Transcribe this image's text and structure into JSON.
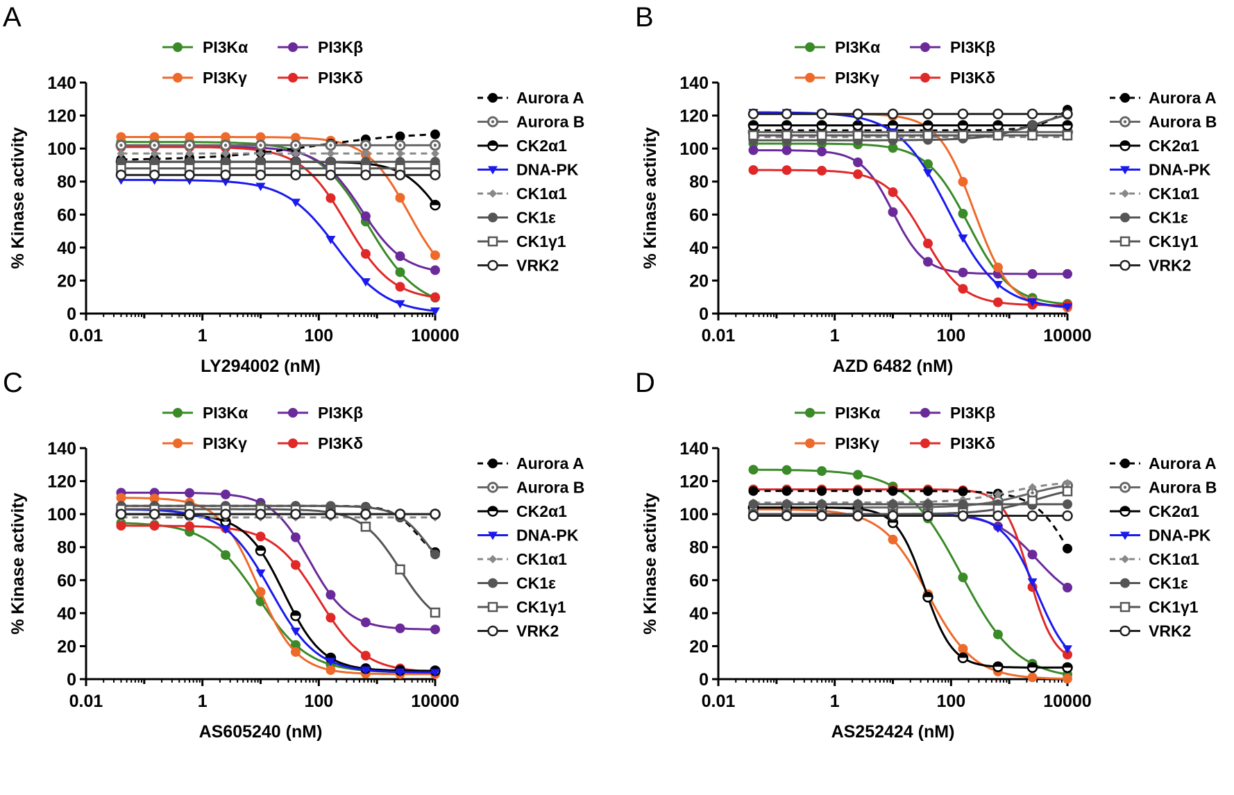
{
  "figure": {
    "x_ticks": [
      "0.01",
      "1",
      "100",
      "10000"
    ],
    "y_ticks": [
      0,
      20,
      40,
      60,
      80,
      100,
      120,
      140
    ],
    "ylabel": "% Kinase activity",
    "top_legend": [
      {
        "name": "PI3Kα",
        "color": "#3a8a28",
        "marker": "circle"
      },
      {
        "name": "PI3Kβ",
        "color": "#6a2a9a",
        "marker": "circle"
      },
      {
        "name": "PI3Kγ",
        "color": "#ee6a2a",
        "marker": "circle"
      },
      {
        "name": "PI3Kδ",
        "color": "#e02828",
        "marker": "circle"
      }
    ],
    "side_legend": [
      {
        "name": "Aurora A",
        "color": "#000000",
        "marker": "circle",
        "dash": "dashed"
      },
      {
        "name": "Aurora B",
        "color": "#666666",
        "marker": "open-dot",
        "dash": "solid"
      },
      {
        "name": "CK2α1",
        "color": "#000000",
        "marker": "half-circle",
        "dash": "solid"
      },
      {
        "name": "DNA-PK",
        "color": "#1a1aee",
        "marker": "triangle-down",
        "dash": "solid"
      },
      {
        "name": "CK1α1",
        "color": "#888888",
        "marker": "diamond",
        "dash": "dashed"
      },
      {
        "name": "CK1ε",
        "color": "#555555",
        "marker": "circle",
        "dash": "solid"
      },
      {
        "name": "CK1γ1",
        "color": "#555555",
        "marker": "open-square",
        "dash": "solid"
      },
      {
        "name": "VRK2",
        "color": "#222222",
        "marker": "open-circle",
        "dash": "solid"
      }
    ]
  },
  "chart_data": [
    {
      "type": "line",
      "panel": "A",
      "xlabel": "LY294002 (nM)",
      "ylabel": "% Kinase activity",
      "xscale": "log",
      "xlim": [
        0.01,
        10000
      ],
      "ylim": [
        0,
        140
      ],
      "series": [
        {
          "name": "PI3Kα",
          "fit": {
            "top": 104,
            "bottom": 3,
            "ic50": 700,
            "hill": 1.0
          }
        },
        {
          "name": "PI3Kβ",
          "fit": {
            "top": 101,
            "bottom": 24,
            "ic50": 550,
            "hill": 1.2
          }
        },
        {
          "name": "PI3Kγ",
          "fit": {
            "top": 107,
            "bottom": 15,
            "ic50": 3500,
            "hill": 1.2
          }
        },
        {
          "name": "PI3Kδ",
          "fit": {
            "top": 101,
            "bottom": 8,
            "ic50": 300,
            "hill": 1.1
          }
        },
        {
          "name": "Aurora A",
          "fit": {
            "top": 93,
            "bottom": 110,
            "ic50": 80,
            "hill": 0.5
          }
        },
        {
          "name": "Aurora B",
          "fit": {
            "top": 102,
            "bottom": 102,
            "ic50": 100,
            "hill": 1
          }
        },
        {
          "name": "CK2α1",
          "fit": {
            "top": 92,
            "bottom": 25,
            "ic50": 14000,
            "hill": 1.3
          }
        },
        {
          "name": "DNA-PK",
          "fit": {
            "top": 81,
            "bottom": 0,
            "ic50": 200,
            "hill": 1.0
          }
        },
        {
          "name": "CK1α1",
          "fit": {
            "top": 97,
            "bottom": 97,
            "ic50": 100,
            "hill": 1
          }
        },
        {
          "name": "CK1ε",
          "fit": {
            "top": 92,
            "bottom": 92,
            "ic50": 100,
            "hill": 1
          }
        },
        {
          "name": "CK1γ1",
          "fit": {
            "top": 88,
            "bottom": 88,
            "ic50": 100,
            "hill": 1
          }
        },
        {
          "name": "VRK2",
          "fit": {
            "top": 84,
            "bottom": 84,
            "ic50": 100,
            "hill": 1
          }
        }
      ]
    },
    {
      "type": "line",
      "panel": "B",
      "xlabel": "AZD 6482 (nM)",
      "ylabel": "% Kinase activity",
      "xscale": "log",
      "xlim": [
        0.01,
        10000
      ],
      "ylim": [
        0,
        140
      ],
      "series": [
        {
          "name": "PI3Kα",
          "fit": {
            "top": 103,
            "bottom": 5,
            "ic50": 200,
            "hill": 1.2
          }
        },
        {
          "name": "PI3Kβ",
          "fit": {
            "top": 99,
            "bottom": 24,
            "ic50": 10,
            "hill": 1.6
          }
        },
        {
          "name": "PI3Kγ",
          "fit": {
            "top": 121,
            "bottom": 3,
            "ic50": 250,
            "hill": 1.4
          }
        },
        {
          "name": "PI3Kδ",
          "fit": {
            "top": 87,
            "bottom": 5,
            "ic50": 35,
            "hill": 1.3
          }
        },
        {
          "name": "Aurora A",
          "fit": {
            "top": 111,
            "bottom": 140,
            "ic50": 12000,
            "hill": 1.5
          }
        },
        {
          "name": "Aurora B",
          "fit": {
            "top": 110,
            "bottom": 110,
            "ic50": 100,
            "hill": 1
          }
        },
        {
          "name": "CK2α1",
          "fit": {
            "top": 114,
            "bottom": 114,
            "ic50": 100,
            "hill": 1
          }
        },
        {
          "name": "DNA-PK",
          "fit": {
            "top": 122,
            "bottom": 3,
            "ic50": 90,
            "hill": 1.0
          }
        },
        {
          "name": "CK1α1",
          "fit": {
            "top": 107,
            "bottom": 107,
            "ic50": 100,
            "hill": 1
          }
        },
        {
          "name": "CK1ε",
          "fit": {
            "top": 105,
            "bottom": 125,
            "ic50": 3000,
            "hill": 1
          }
        },
        {
          "name": "CK1γ1",
          "fit": {
            "top": 108,
            "bottom": 108,
            "ic50": 100,
            "hill": 1
          }
        },
        {
          "name": "VRK2",
          "fit": {
            "top": 121,
            "bottom": 121,
            "ic50": 100,
            "hill": 1
          }
        }
      ]
    },
    {
      "type": "line",
      "panel": "C",
      "xlabel": "AS605240 (nM)",
      "ylabel": "% Kinase activity",
      "xscale": "log",
      "xlim": [
        0.01,
        10000
      ],
      "ylim": [
        0,
        140
      ],
      "series": [
        {
          "name": "PI3Kα",
          "fit": {
            "top": 95,
            "bottom": 4,
            "ic50": 9,
            "hill": 1.0
          }
        },
        {
          "name": "PI3Kβ",
          "fit": {
            "top": 113,
            "bottom": 30,
            "ic50": 70,
            "hill": 1.3
          }
        },
        {
          "name": "PI3Kγ",
          "fit": {
            "top": 110,
            "bottom": 3,
            "ic50": 9,
            "hill": 1.3
          }
        },
        {
          "name": "PI3Kδ",
          "fit": {
            "top": 93,
            "bottom": 4,
            "ic50": 100,
            "hill": 1.1
          }
        },
        {
          "name": "Aurora A",
          "fit": {
            "top": 105,
            "bottom": 70,
            "ic50": 5000,
            "hill": 2
          }
        },
        {
          "name": "Aurora B",
          "fit": {
            "top": 100,
            "bottom": 100,
            "ic50": 100,
            "hill": 1
          }
        },
        {
          "name": "CK2α1",
          "fit": {
            "top": 100,
            "bottom": 5,
            "ic50": 25,
            "hill": 1.3
          }
        },
        {
          "name": "DNA-PK",
          "fit": {
            "top": 103,
            "bottom": 4,
            "ic50": 15,
            "hill": 1.1
          }
        },
        {
          "name": "CK1α1",
          "fit": {
            "top": 98,
            "bottom": 98,
            "ic50": 100,
            "hill": 1
          }
        },
        {
          "name": "CK1ε",
          "fit": {
            "top": 105,
            "bottom": 55,
            "ic50": 8000,
            "hill": 1.6
          }
        },
        {
          "name": "CK1γ1",
          "fit": {
            "top": 103,
            "bottom": 30,
            "ic50": 2500,
            "hill": 1.3
          }
        },
        {
          "name": "VRK2",
          "fit": {
            "top": 100,
            "bottom": 100,
            "ic50": 100,
            "hill": 1
          }
        }
      ]
    },
    {
      "type": "line",
      "panel": "D",
      "xlabel": "AS252424 (nM)",
      "ylabel": "% Kinase activity",
      "xscale": "log",
      "xlim": [
        0.01,
        10000
      ],
      "ylim": [
        0,
        140
      ],
      "series": [
        {
          "name": "PI3Kα",
          "fit": {
            "top": 127,
            "bottom": 0,
            "ic50": 150,
            "hill": 0.9
          }
        },
        {
          "name": "PI3Kβ",
          "fit": {
            "top": 100,
            "bottom": 45,
            "ic50": 3000,
            "hill": 1.2
          }
        },
        {
          "name": "PI3Kγ",
          "fit": {
            "top": 103,
            "bottom": 0,
            "ic50": 40,
            "hill": 1.1
          }
        },
        {
          "name": "PI3Kδ",
          "fit": {
            "top": 115,
            "bottom": 10,
            "ic50": 2200,
            "hill": 2.0
          }
        },
        {
          "name": "Aurora A",
          "fit": {
            "top": 114,
            "bottom": 20,
            "ic50": 15000,
            "hill": 1.3
          }
        },
        {
          "name": "Aurora B",
          "fit": {
            "top": 104,
            "bottom": 120,
            "ic50": 2000,
            "hill": 1
          }
        },
        {
          "name": "CK2α1",
          "fit": {
            "top": 104,
            "bottom": 7,
            "ic50": 35,
            "hill": 1.8
          }
        },
        {
          "name": "DNA-PK",
          "fit": {
            "top": 100,
            "bottom": 5,
            "ic50": 3000,
            "hill": 1.5
          }
        },
        {
          "name": "CK1α1",
          "fit": {
            "top": 107,
            "bottom": 120,
            "ic50": 1000,
            "hill": 1
          }
        },
        {
          "name": "CK1ε",
          "fit": {
            "top": 106,
            "bottom": 106,
            "ic50": 100,
            "hill": 1
          }
        },
        {
          "name": "CK1γ1",
          "fit": {
            "top": 100,
            "bottom": 118,
            "ic50": 3000,
            "hill": 1
          }
        },
        {
          "name": "VRK2",
          "fit": {
            "top": 99,
            "bottom": 99,
            "ic50": 100,
            "hill": 1
          }
        }
      ]
    }
  ]
}
